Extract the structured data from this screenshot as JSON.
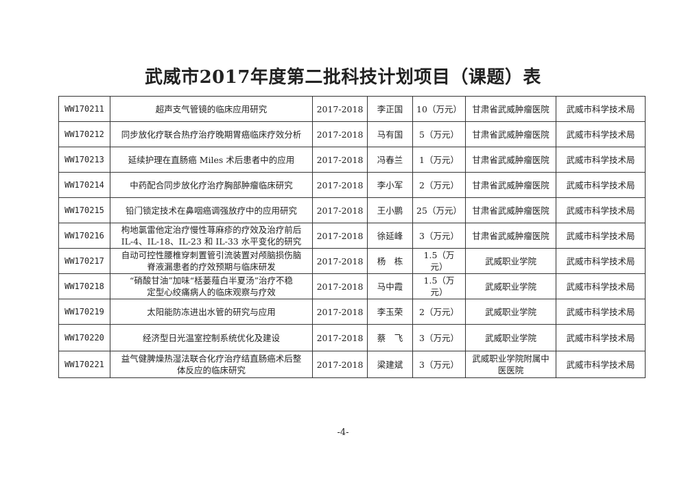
{
  "title": "武威市2017年度第二批科技计划项目（课题）表",
  "rows": [
    [
      "WW170211",
      "超声支气管镜的临床应用研究",
      "2017-2018",
      "李正国",
      "10（万元）",
      "甘肃省武威肿瘤医院",
      "武威市科学技术局"
    ],
    [
      "WW170212",
      "同步放化疗联合热疗治疗晚期胃癌临床疗效分析",
      "2017-2018",
      "马有国",
      "5（万元）",
      "甘肃省武威肿瘤医院",
      "武威市科学技术局"
    ],
    [
      "WW170213",
      "延续护理在直肠癌 Miles 术后患者中的应用",
      "2017-2018",
      "冯春兰",
      "1（万元）",
      "甘肃省武威肿瘤医院",
      "武威市科学技术局"
    ],
    [
      "WW170214",
      "中药配合同步放化疗治疗胸部肿瘤临床研究",
      "2017-2018",
      "李小军",
      "2（万元）",
      "甘肃省武威肿瘤医院",
      "武威市科学技术局"
    ],
    [
      "WW170215",
      "铅门锁定技术在鼻咽癌调强放疗中的应用研究",
      "2017-2018",
      "王小鹏",
      "25（万元）",
      "甘肃省武威肿瘤医院",
      "武威市科学技术局"
    ],
    [
      "WW170216",
      "枸地氯雷他定治疗慢性荨麻疹的疗效及治疗前后\nIL-4、IL-18、IL-23 和 IL-33 水平变化的研究",
      "2017-2018",
      "徐延峰",
      "3（万元）",
      "甘肃省武威肿瘤医院",
      "武威市科学技术局"
    ],
    [
      "WW170217",
      "自动可控性腰椎穿刺置管引流装置对颅脑损伤脑\n脊液漏患者的疗效预期与临床研发",
      "2017-2018",
      "杨　栋",
      "1.5（万\n元）",
      "武威职业学院",
      "武威市科学技术局"
    ],
    [
      "WW170218",
      "“硝酸甘油”加味“栝蒌薤白半夏汤”治疗不稳\n定型心绞痛病人的临床观察与疗效",
      "2017-2018",
      "马中霞",
      "1.5（万\n元）",
      "武威职业学院",
      "武威市科学技术局"
    ],
    [
      "WW170219",
      "太阳能防冻进出水管的研究与应用",
      "2017-2018",
      "李玉荣",
      "2（万元）",
      "武威职业学院",
      "武威市科学技术局"
    ],
    [
      "WW170220",
      "经济型日光温室控制系统优化及建设",
      "2017-2018",
      "蔡　飞",
      "3（万元）",
      "武威职业学院",
      "武威市科学技术局"
    ],
    [
      "WW170221",
      "益气健脾燥热湿法联合化疗治疗结直肠癌术后整\n体反应的临床研究",
      "2017-2018",
      "梁建斌",
      "3（万元）",
      "武威职业学院附属中\n医医院",
      "武威市科学技术局"
    ]
  ],
  "page_number": "-4-"
}
